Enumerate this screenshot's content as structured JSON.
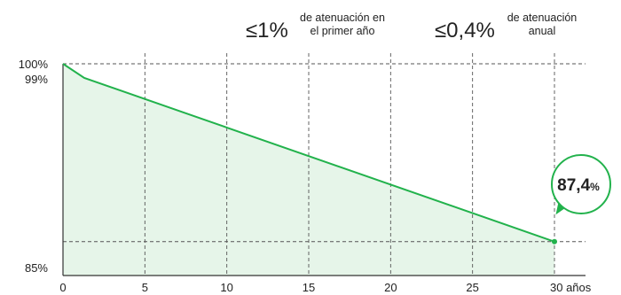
{
  "chart_data": {
    "type": "area",
    "title": "",
    "xlabel": "",
    "ylabel": "",
    "xlim": [
      0,
      30
    ],
    "ylim": [
      85,
      100
    ],
    "x_ticks": [
      {
        "value": 0,
        "label": "0"
      },
      {
        "value": 5,
        "label": "5"
      },
      {
        "value": 10,
        "label": "10"
      },
      {
        "value": 15,
        "label": "15"
      },
      {
        "value": 20,
        "label": "20"
      },
      {
        "value": 25,
        "label": "25"
      },
      {
        "value": 30,
        "label": "30 años"
      }
    ],
    "y_ticks": [
      {
        "value": 100,
        "label": "100%"
      },
      {
        "value": 99,
        "label": "99%"
      },
      {
        "value": 85,
        "label": "85%"
      }
    ],
    "grid": {
      "vertical": true,
      "horizontal_reference_lines": [
        100,
        87.4
      ]
    },
    "series": [
      {
        "values": [
          {
            "x": 0,
            "y": 100
          },
          {
            "x": 1.3,
            "y": 99
          },
          {
            "x": 30,
            "y": 87.4
          }
        ]
      }
    ],
    "annotations": {
      "first_year": {
        "value": "≤1%",
        "line1": "de atenuación en",
        "line2": "el primer año"
      },
      "annual": {
        "value": "≤0,4%",
        "line1": "de atenuación",
        "line2": "anual"
      },
      "callout": {
        "x": 30,
        "y": 87.4,
        "value": "87,4",
        "unit": "%"
      }
    },
    "colors": {
      "line": "#22b24c",
      "fill": "#e6f5e9",
      "grid": "#555555",
      "axis": "#333333",
      "callout_border": "#22b24c"
    }
  }
}
